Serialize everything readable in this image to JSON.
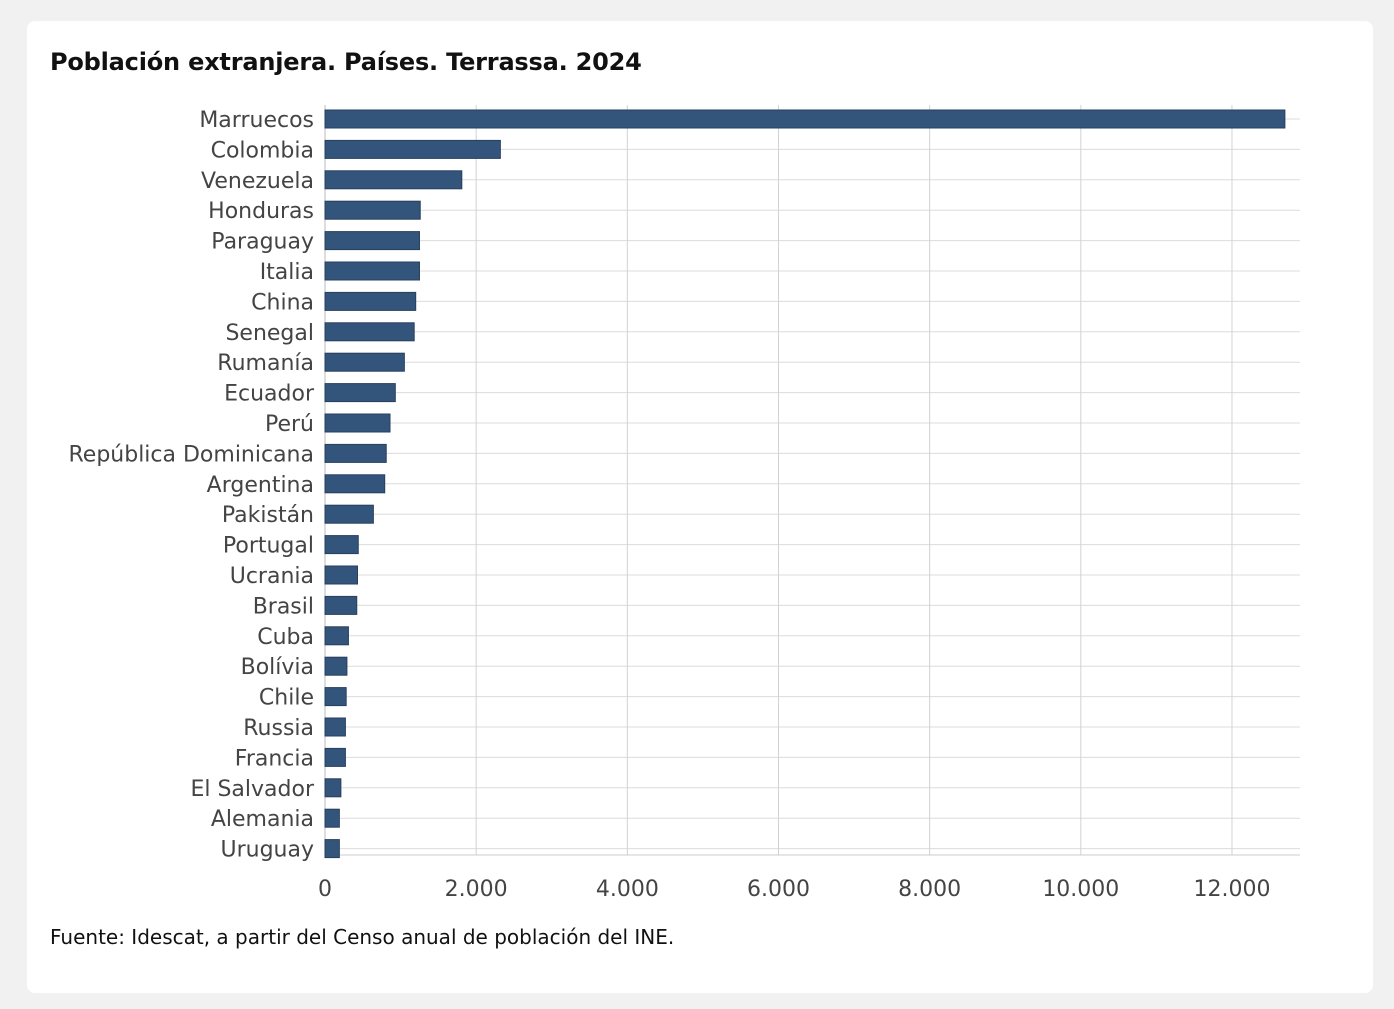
{
  "chart_data": {
    "type": "bar",
    "orientation": "horizontal",
    "title": "Población extranjera. Países. Terrassa. 2024",
    "source": "Fuente: Idescat, a partir del Censo anual de población del INE.",
    "categories": [
      "Marruecos",
      "Colombia",
      "Venezuela",
      "Honduras",
      "Paraguay",
      "Italia",
      "China",
      "Senegal",
      "Rumanía",
      "Ecuador",
      "Perú",
      "República Dominicana",
      "Argentina",
      "Pakistán",
      "Portugal",
      "Ucrania",
      "Brasil",
      "Cuba",
      "Bolívia",
      "Chile",
      "Russia",
      "Francia",
      "El Salvador",
      "Alemania",
      "Uruguay"
    ],
    "values": [
      12700,
      2320,
      1810,
      1260,
      1250,
      1250,
      1200,
      1180,
      1050,
      930,
      860,
      810,
      790,
      640,
      440,
      430,
      420,
      310,
      290,
      280,
      270,
      270,
      210,
      190,
      190
    ],
    "xlim": [
      0,
      12900
    ],
    "xticks": [
      0,
      2000,
      4000,
      6000,
      8000,
      10000,
      12000
    ],
    "xtick_labels": [
      "0",
      "2.000",
      "4.000",
      "6.000",
      "8.000",
      "10.000",
      "12.000"
    ],
    "xlabel": "",
    "ylabel": "",
    "grid": true,
    "bar_color": "#34557b"
  }
}
